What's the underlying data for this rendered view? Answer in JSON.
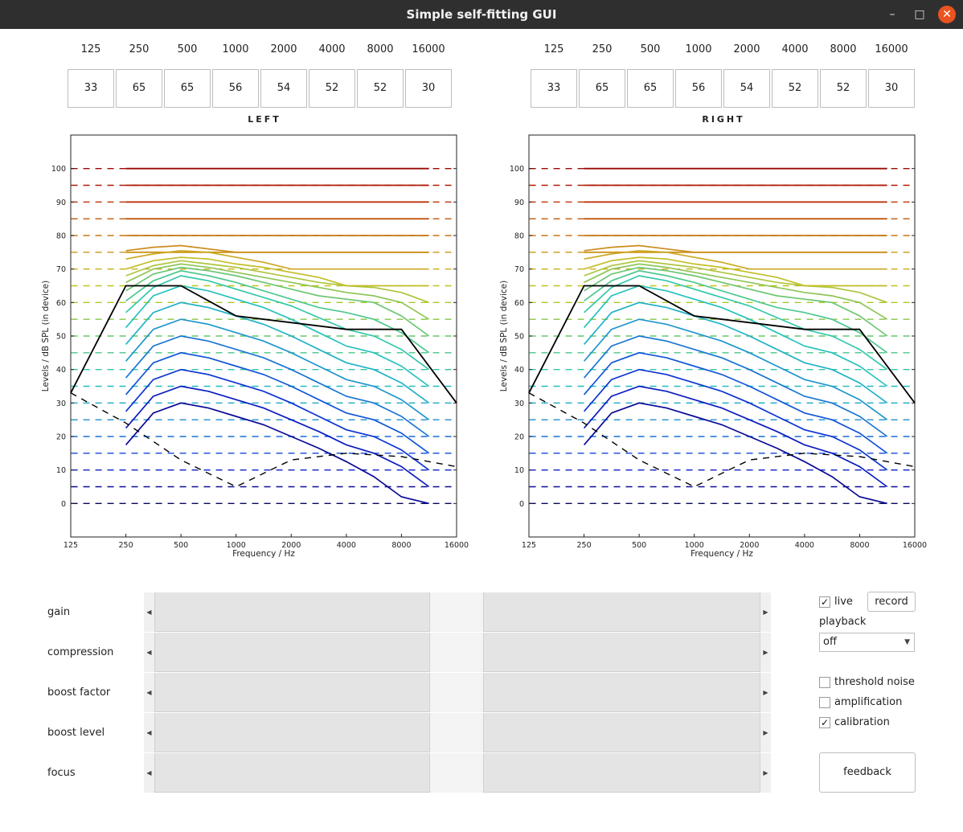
{
  "window": {
    "title": "Simple self-fitting GUI",
    "minimize": "–",
    "maximize": "□",
    "close": "✕"
  },
  "frequencies": [
    "125",
    "250",
    "500",
    "1000",
    "2000",
    "4000",
    "8000",
    "16000"
  ],
  "left_gains": [
    "33",
    "65",
    "65",
    "56",
    "54",
    "52",
    "52",
    "30"
  ],
  "right_gains": [
    "33",
    "65",
    "65",
    "56",
    "54",
    "52",
    "52",
    "30"
  ],
  "ears": {
    "left": "LEFT",
    "right": "RIGHT"
  },
  "chart_data": [
    {
      "type": "line",
      "title": "LEFT",
      "xlabel": "Frequency / Hz",
      "ylabel": "Levels / dB SPL (in device)",
      "x_ticks": [
        "125",
        "250",
        "500",
        "1000",
        "2000",
        "4000",
        "8000",
        "16000"
      ],
      "y_ticks": [
        0,
        10,
        20,
        30,
        40,
        50,
        60,
        70,
        80,
        90,
        100
      ],
      "xlim": [
        125,
        16000
      ],
      "x_scale": "log2",
      "ylim": [
        -10,
        110
      ],
      "reference_levels": [
        0,
        5,
        10,
        15,
        20,
        25,
        30,
        35,
        40,
        45,
        50,
        55,
        60,
        65,
        70,
        75,
        80,
        85,
        90,
        95,
        100
      ],
      "series": [
        {
          "values": [
            [
              250,
              17.5
            ],
            [
              353,
              27
            ],
            [
              500,
              30
            ],
            [
              707,
              28.5
            ],
            [
              1000,
              26
            ],
            [
              1414,
              23.5
            ],
            [
              2000,
              20
            ],
            [
              2828,
              16.5
            ],
            [
              4000,
              12.5
            ],
            [
              5657,
              8
            ],
            [
              8000,
              2
            ],
            [
              11314,
              0
            ]
          ]
        },
        {
          "values": [
            [
              250,
              22.5
            ],
            [
              353,
              32
            ],
            [
              500,
              35
            ],
            [
              707,
              33.5
            ],
            [
              1000,
              31
            ],
            [
              1414,
              28.5
            ],
            [
              2000,
              25
            ],
            [
              2828,
              21.5
            ],
            [
              4000,
              17.5
            ],
            [
              5657,
              15
            ],
            [
              8000,
              11
            ],
            [
              11314,
              5
            ]
          ]
        },
        {
          "values": [
            [
              250,
              27.5
            ],
            [
              353,
              37
            ],
            [
              500,
              40
            ],
            [
              707,
              38.5
            ],
            [
              1000,
              36
            ],
            [
              1414,
              33.5
            ],
            [
              2000,
              30
            ],
            [
              2828,
              26
            ],
            [
              4000,
              22
            ],
            [
              5657,
              20
            ],
            [
              8000,
              16
            ],
            [
              11314,
              10
            ]
          ]
        },
        {
          "values": [
            [
              250,
              32.5
            ],
            [
              353,
              42
            ],
            [
              500,
              45
            ],
            [
              707,
              43.5
            ],
            [
              1000,
              41
            ],
            [
              1414,
              38.5
            ],
            [
              2000,
              35
            ],
            [
              2828,
              31
            ],
            [
              4000,
              27
            ],
            [
              5657,
              25
            ],
            [
              8000,
              21
            ],
            [
              11314,
              15
            ]
          ]
        },
        {
          "values": [
            [
              250,
              37.5
            ],
            [
              353,
              47
            ],
            [
              500,
              50
            ],
            [
              707,
              48.5
            ],
            [
              1000,
              46
            ],
            [
              1414,
              43.5
            ],
            [
              2000,
              40
            ],
            [
              2828,
              36
            ],
            [
              4000,
              32
            ],
            [
              5657,
              30
            ],
            [
              8000,
              26
            ],
            [
              11314,
              20
            ]
          ]
        },
        {
          "values": [
            [
              250,
              42.5
            ],
            [
              353,
              52
            ],
            [
              500,
              55
            ],
            [
              707,
              53.5
            ],
            [
              1000,
              51
            ],
            [
              1414,
              48.5
            ],
            [
              2000,
              45
            ],
            [
              2828,
              41
            ],
            [
              4000,
              37
            ],
            [
              5657,
              35
            ],
            [
              8000,
              31
            ],
            [
              11314,
              25
            ]
          ]
        },
        {
          "values": [
            [
              250,
              47.5
            ],
            [
              353,
              57
            ],
            [
              500,
              60
            ],
            [
              707,
              58.5
            ],
            [
              1000,
              56
            ],
            [
              1414,
              53.5
            ],
            [
              2000,
              50
            ],
            [
              2828,
              46
            ],
            [
              4000,
              42
            ],
            [
              5657,
              40
            ],
            [
              8000,
              36
            ],
            [
              11314,
              30
            ]
          ]
        },
        {
          "values": [
            [
              250,
              52.5
            ],
            [
              353,
              62
            ],
            [
              500,
              65
            ],
            [
              707,
              63.5
            ],
            [
              1000,
              61
            ],
            [
              1414,
              58.5
            ],
            [
              2000,
              55
            ],
            [
              2828,
              51
            ],
            [
              4000,
              47
            ],
            [
              5657,
              45
            ],
            [
              8000,
              41
            ],
            [
              11314,
              35
            ]
          ]
        },
        {
          "values": [
            [
              250,
              57
            ],
            [
              353,
              64.5
            ],
            [
              500,
              68
            ],
            [
              707,
              66.5
            ],
            [
              1000,
              64
            ],
            [
              1414,
              61.5
            ],
            [
              2000,
              59
            ],
            [
              2828,
              55.5
            ],
            [
              4000,
              52
            ],
            [
              5657,
              50
            ],
            [
              8000,
              46
            ],
            [
              11314,
              40
            ]
          ]
        },
        {
          "values": [
            [
              250,
              60.5
            ],
            [
              353,
              66.5
            ],
            [
              500,
              69.5
            ],
            [
              707,
              68
            ],
            [
              1000,
              66
            ],
            [
              1414,
              63.5
            ],
            [
              2000,
              61
            ],
            [
              2828,
              58.5
            ],
            [
              4000,
              57
            ],
            [
              5657,
              55
            ],
            [
              8000,
              51
            ],
            [
              11314,
              45
            ]
          ]
        },
        {
          "values": [
            [
              250,
              63.5
            ],
            [
              353,
              68.5
            ],
            [
              500,
              70.5
            ],
            [
              707,
              69.5
            ],
            [
              1000,
              68
            ],
            [
              1414,
              66
            ],
            [
              2000,
              64
            ],
            [
              2828,
              62
            ],
            [
              4000,
              61
            ],
            [
              5657,
              60
            ],
            [
              8000,
              56
            ],
            [
              11314,
              50
            ]
          ]
        },
        {
          "values": [
            [
              250,
              66
            ],
            [
              353,
              70
            ],
            [
              500,
              71.5
            ],
            [
              707,
              70.5
            ],
            [
              1000,
              69
            ],
            [
              1414,
              67.5
            ],
            [
              2000,
              66
            ],
            [
              2828,
              64.5
            ],
            [
              4000,
              63
            ],
            [
              5657,
              62
            ],
            [
              8000,
              60
            ],
            [
              11314,
              55
            ]
          ]
        },
        {
          "values": [
            [
              250,
              68
            ],
            [
              353,
              71
            ],
            [
              500,
              72.5
            ],
            [
              707,
              71.5
            ],
            [
              1000,
              70.5
            ],
            [
              1414,
              69
            ],
            [
              2000,
              67.5
            ],
            [
              2828,
              66
            ],
            [
              4000,
              65
            ],
            [
              5657,
              64.5
            ],
            [
              8000,
              63
            ],
            [
              11314,
              60
            ]
          ]
        },
        {
          "values": [
            [
              250,
              70
            ],
            [
              353,
              72.5
            ],
            [
              500,
              73.5
            ],
            [
              707,
              73
            ],
            [
              1000,
              71.5
            ],
            [
              1414,
              70.5
            ],
            [
              2000,
              69
            ],
            [
              2828,
              67.5
            ],
            [
              4000,
              65
            ],
            [
              5657,
              65
            ],
            [
              8000,
              65
            ],
            [
              11314,
              65
            ]
          ]
        },
        {
          "values": [
            [
              250,
              73
            ],
            [
              353,
              74.5
            ],
            [
              500,
              75.5
            ],
            [
              707,
              75
            ],
            [
              1000,
              73.5
            ],
            [
              1414,
              72
            ],
            [
              2000,
              70
            ],
            [
              2828,
              70
            ],
            [
              4000,
              70
            ],
            [
              5657,
              70
            ],
            [
              8000,
              70
            ],
            [
              11314,
              70
            ]
          ]
        },
        {
          "values": [
            [
              250,
              75.5
            ],
            [
              353,
              76.5
            ],
            [
              500,
              77
            ],
            [
              707,
              76
            ],
            [
              1000,
              75
            ],
            [
              1414,
              75
            ],
            [
              2000,
              75
            ],
            [
              2828,
              75
            ],
            [
              4000,
              75
            ],
            [
              5657,
              75
            ],
            [
              8000,
              75
            ],
            [
              11314,
              75
            ]
          ]
        }
      ],
      "gain_line": [
        [
          125,
          33
        ],
        [
          250,
          65
        ],
        [
          500,
          65
        ],
        [
          1000,
          56
        ],
        [
          2000,
          54
        ],
        [
          4000,
          52
        ],
        [
          8000,
          52
        ],
        [
          16000,
          30
        ]
      ],
      "threshold_line": [
        [
          125,
          33
        ],
        [
          250,
          24
        ],
        [
          500,
          13
        ],
        [
          1000,
          5
        ],
        [
          2000,
          13
        ],
        [
          4000,
          15
        ],
        [
          8000,
          14
        ],
        [
          16000,
          11
        ]
      ]
    },
    {
      "type": "line",
      "title": "RIGHT",
      "xlabel": "Frequency / Hz",
      "ylabel": "Levels / dB SPL (in device)",
      "x_ticks": [
        "125",
        "250",
        "500",
        "1000",
        "2000",
        "4000",
        "8000",
        "16000"
      ],
      "y_ticks": [
        0,
        10,
        20,
        30,
        40,
        50,
        60,
        70,
        80,
        90,
        100
      ],
      "xlim": [
        125,
        16000
      ],
      "x_scale": "log2",
      "ylim": [
        -10,
        110
      ],
      "reference_levels": [
        0,
        5,
        10,
        15,
        20,
        25,
        30,
        35,
        40,
        45,
        50,
        55,
        60,
        65,
        70,
        75,
        80,
        85,
        90,
        95,
        100
      ],
      "series": "same as LEFT",
      "gain_line": [
        [
          125,
          33
        ],
        [
          250,
          65
        ],
        [
          500,
          65
        ],
        [
          1000,
          56
        ],
        [
          2000,
          54
        ],
        [
          4000,
          52
        ],
        [
          8000,
          52
        ],
        [
          16000,
          30
        ]
      ],
      "threshold_line": [
        [
          125,
          33
        ],
        [
          250,
          24
        ],
        [
          500,
          13
        ],
        [
          1000,
          5
        ],
        [
          2000,
          13
        ],
        [
          4000,
          15
        ],
        [
          8000,
          14
        ],
        [
          16000,
          11
        ]
      ]
    }
  ],
  "sliders": [
    {
      "label": "gain",
      "value": 0.5
    },
    {
      "label": "compression",
      "value": 0.5
    },
    {
      "label": "boost factor",
      "value": 0.5
    },
    {
      "label": "boost level",
      "value": 0.5
    },
    {
      "label": "focus",
      "value": 0.5
    }
  ],
  "controls": {
    "live_label": "live",
    "live_checked": true,
    "record_label": "record",
    "playback_label": "playback",
    "playback_value": "off",
    "threshold_noise_label": "threshold noise",
    "threshold_noise_checked": false,
    "amplification_label": "amplification",
    "amplification_checked": false,
    "calibration_label": "calibration",
    "calibration_checked": true,
    "feedback_label": "feedback",
    "check_mark": "✓"
  }
}
